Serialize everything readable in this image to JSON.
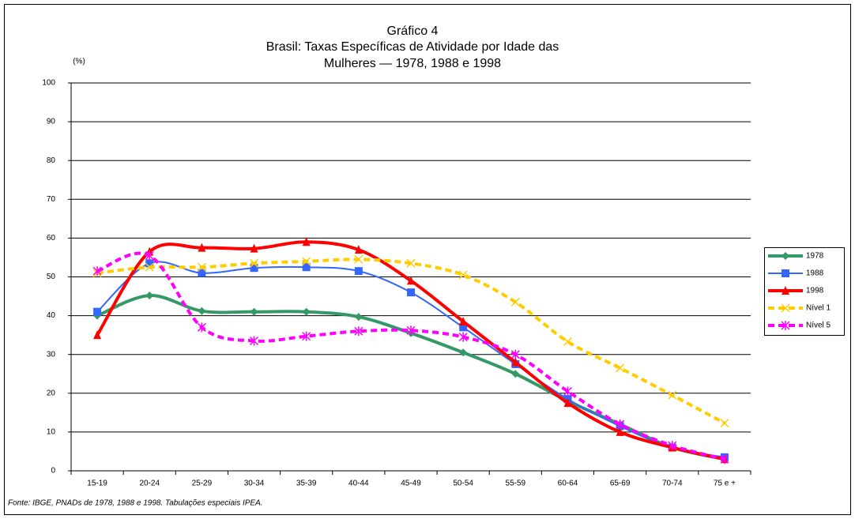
{
  "chart_data": {
    "type": "line",
    "title": [
      "Gráfico 4",
      "Brasil: Taxas Específicas de Atividade por Idade das",
      "Mulheres — 1978, 1988 e 1998"
    ],
    "y_label": "(%)",
    "source": "Fonte: IBGE, PNADs de 1978, 1988 e 1998. Tabulações especiais IPEA.",
    "categories": [
      "15-19",
      "20-24",
      "25-29",
      "30-34",
      "35-39",
      "40-44",
      "45-49",
      "50-54",
      "55-59",
      "60-64",
      "65-69",
      "70-74",
      "75 e +"
    ],
    "series": [
      {
        "name": "1978",
        "color": "#339966",
        "marker": "diamond",
        "dashed": false,
        "width": 4,
        "values": [
          40,
          45.2,
          41.2,
          41,
          41,
          39.7,
          35.5,
          30.5,
          25,
          18,
          12,
          6,
          3
        ]
      },
      {
        "name": "1988",
        "color": "#3366ff",
        "marker": "square",
        "dashed": false,
        "width": 2,
        "values": [
          41,
          53.5,
          51,
          52.3,
          52.5,
          51.5,
          46,
          37,
          27.5,
          18.5,
          11.5,
          6,
          3.5
        ]
      },
      {
        "name": "1998",
        "color": "#ff0000",
        "marker": "triangle",
        "dashed": false,
        "width": 4,
        "values": [
          35,
          56.5,
          57.5,
          57.3,
          59,
          57,
          49,
          38.5,
          28,
          17.5,
          10,
          6,
          3
        ]
      },
      {
        "name": "Nível 1",
        "color": "#ffcc00",
        "marker": "x",
        "dashed": true,
        "width": 4,
        "values": [
          51,
          52.5,
          52.5,
          53.5,
          54,
          54.5,
          53.5,
          50.5,
          43.5,
          33.3,
          26.5,
          19.5,
          12.3
        ]
      },
      {
        "name": "Nível 5",
        "color": "#ff00ff",
        "marker": "star",
        "dashed": true,
        "width": 4,
        "values": [
          51.5,
          55.5,
          37,
          33.5,
          34.7,
          36,
          36.2,
          34.5,
          30,
          20.5,
          12,
          6.5,
          3
        ]
      }
    ],
    "ylim": [
      0,
      100
    ],
    "yticks": [
      0,
      10,
      20,
      30,
      40,
      50,
      60,
      70,
      80,
      90,
      100
    ],
    "grid": true,
    "legend": "right"
  }
}
